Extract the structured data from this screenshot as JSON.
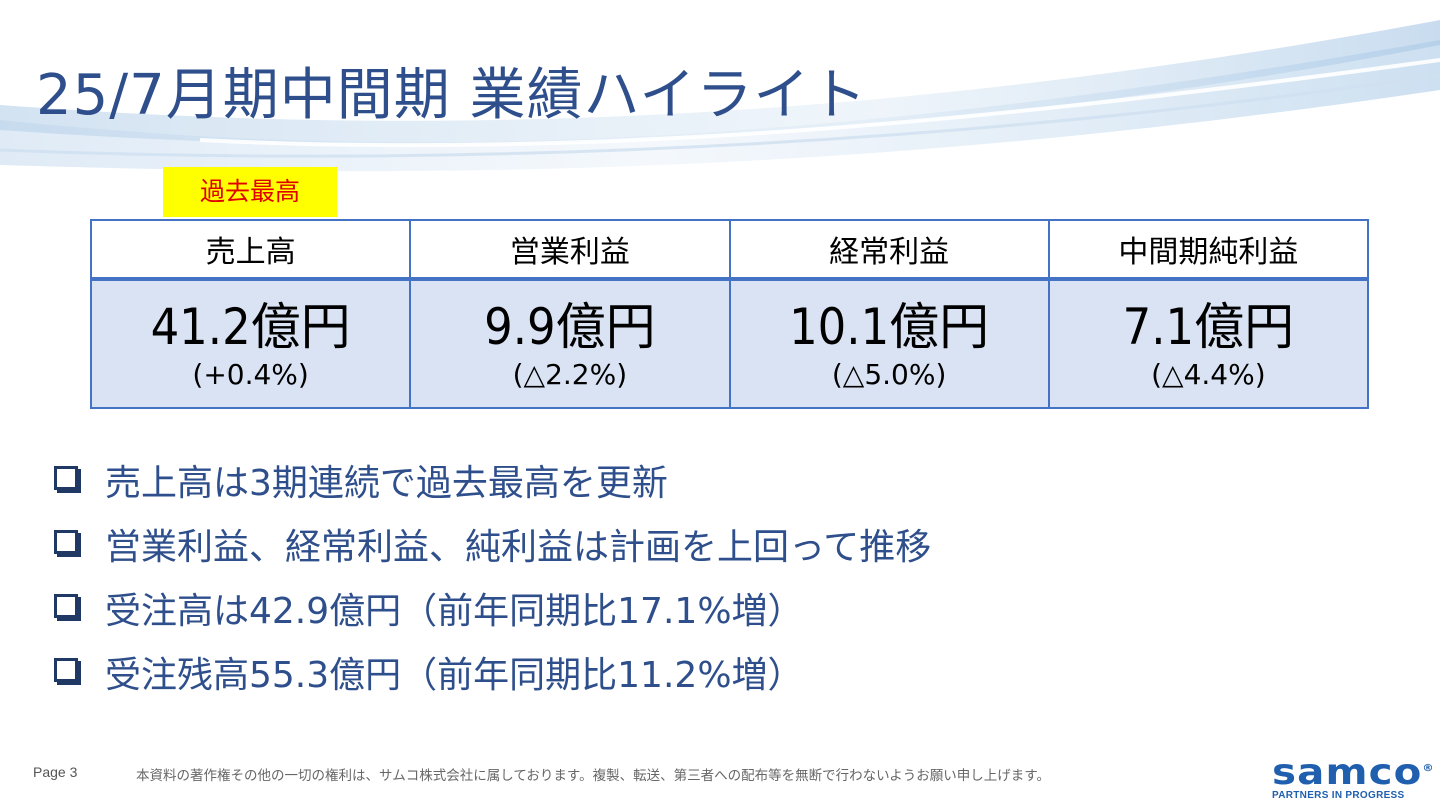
{
  "title": "25/7月期中間期 業績ハイライト",
  "badge": "過去最高",
  "kpis": [
    {
      "label": "売上高",
      "value": "41.2億円",
      "change": "(+0.4%)"
    },
    {
      "label": "営業利益",
      "value": "9.9億円",
      "change": "(△2.2%)"
    },
    {
      "label": "経常利益",
      "value": "10.1億円",
      "change": "(△5.0%)"
    },
    {
      "label": "中間期純利益",
      "value": "7.1億円",
      "change": "(△4.4%)"
    }
  ],
  "bullets": [
    "売上高は3期連続で過去最高を更新",
    "営業利益、経常利益、純利益は計画を上回って推移",
    "受注高は42.9億円（前年同期比17.1%増）",
    "受注残高55.3億円（前年同期比11.2%増）"
  ],
  "footer": {
    "page": "Page 3",
    "copyright": "本資料の著作権その他の一切の権利は、サムコ株式会社に属しております。複製、転送、第三者への配布等を無断で行わないようお願い申し上げます。"
  },
  "logo": {
    "word": "samco",
    "registered": "®",
    "tagline": "PARTNERS IN PROGRESS"
  },
  "colors": {
    "title": "#2e4f8c",
    "table_border": "#4472c4",
    "value_fill": "#dae3f3",
    "badge_bg": "#ffff00",
    "badge_text": "#e00000",
    "logo": "#1f5fae"
  }
}
